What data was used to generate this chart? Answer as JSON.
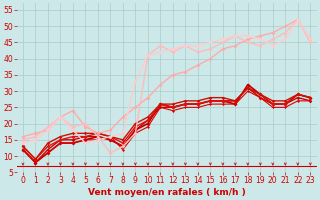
{
  "bg_color": "#cce8e8",
  "grid_color": "#aacccc",
  "xlabel": "Vent moyen/en rafales ( km/h )",
  "xlim": [
    -0.5,
    23.5
  ],
  "ylim": [
    5,
    57
  ],
  "yticks": [
    5,
    10,
    15,
    20,
    25,
    30,
    35,
    40,
    45,
    50,
    55
  ],
  "xticks": [
    0,
    1,
    2,
    3,
    4,
    5,
    6,
    7,
    8,
    9,
    10,
    11,
    12,
    13,
    14,
    15,
    16,
    17,
    18,
    19,
    20,
    21,
    22,
    23
  ],
  "series": [
    {
      "x": [
        0,
        1,
        2,
        3,
        4,
        5,
        6,
        7,
        8,
        9,
        10,
        11,
        12,
        13,
        14,
        15,
        16,
        17,
        18,
        19,
        20,
        21,
        22,
        23
      ],
      "y": [
        12,
        8,
        11,
        14,
        14,
        15,
        16,
        15,
        13,
        18,
        20,
        26,
        25,
        26,
        26,
        27,
        27,
        26,
        32,
        29,
        26,
        26,
        29,
        28
      ],
      "color": "#bb0000",
      "lw": 1.2,
      "marker": "D",
      "ms": 2.0
    },
    {
      "x": [
        0,
        1,
        2,
        3,
        4,
        5,
        6,
        7,
        8,
        9,
        10,
        11,
        12,
        13,
        14,
        15,
        16,
        17,
        18,
        19,
        20,
        21,
        22,
        23
      ],
      "y": [
        12,
        8,
        12,
        15,
        15,
        16,
        16,
        15,
        13,
        18,
        21,
        25,
        25,
        26,
        26,
        27,
        27,
        27,
        31,
        28,
        26,
        26,
        28,
        27
      ],
      "color": "#cc0000",
      "lw": 1.0,
      "marker": "D",
      "ms": 1.8
    },
    {
      "x": [
        0,
        1,
        2,
        3,
        4,
        5,
        6,
        7,
        8,
        9,
        10,
        11,
        12,
        13,
        14,
        15,
        16,
        17,
        18,
        19,
        20,
        21,
        22,
        23
      ],
      "y": [
        13,
        9,
        13,
        15,
        16,
        16,
        17,
        16,
        14,
        19,
        21,
        26,
        25,
        26,
        26,
        27,
        27,
        27,
        31,
        29,
        26,
        26,
        29,
        28
      ],
      "color": "#dd1111",
      "lw": 1.0,
      "marker": "D",
      "ms": 1.8
    },
    {
      "x": [
        0,
        1,
        2,
        3,
        4,
        5,
        6,
        7,
        8,
        9,
        10,
        11,
        12,
        13,
        14,
        15,
        16,
        17,
        18,
        19,
        20,
        21,
        22,
        23
      ],
      "y": [
        13,
        9,
        14,
        16,
        17,
        17,
        17,
        16,
        15,
        20,
        22,
        26,
        26,
        27,
        27,
        28,
        28,
        27,
        31,
        29,
        27,
        27,
        29,
        28
      ],
      "color": "#cc1100",
      "lw": 1.0,
      "marker": "D",
      "ms": 1.8
    },
    {
      "x": [
        0,
        1,
        2,
        3,
        4,
        5,
        6,
        7,
        8,
        9,
        10,
        11,
        12,
        13,
        14,
        15,
        16,
        17,
        18,
        19,
        20,
        21,
        22,
        23
      ],
      "y": [
        12,
        8,
        11,
        14,
        14,
        15,
        15,
        16,
        12,
        17,
        19,
        25,
        24,
        25,
        25,
        26,
        26,
        26,
        30,
        28,
        25,
        25,
        27,
        27
      ],
      "color": "#dd0000",
      "lw": 0.8,
      "marker": "D",
      "ms": 1.5
    },
    {
      "x": [
        0,
        1,
        2,
        3,
        4,
        5,
        6,
        7,
        8,
        9,
        10,
        11,
        12,
        13,
        14,
        15,
        16,
        17,
        18,
        19,
        20,
        21,
        22,
        23
      ],
      "y": [
        16,
        17,
        18,
        22,
        24,
        19,
        17,
        18,
        22,
        25,
        28,
        32,
        35,
        36,
        38,
        40,
        43,
        44,
        46,
        47,
        48,
        50,
        52,
        46
      ],
      "color": "#ffaaaa",
      "lw": 1.0,
      "marker": "D",
      "ms": 2.0
    },
    {
      "x": [
        0,
        1,
        2,
        3,
        4,
        5,
        6,
        7,
        8,
        9,
        10,
        11,
        12,
        13,
        14,
        15,
        16,
        17,
        18,
        19,
        20,
        21,
        22,
        23
      ],
      "y": [
        15,
        16,
        19,
        22,
        19,
        20,
        16,
        11,
        13,
        17,
        41,
        44,
        42,
        44,
        42,
        43,
        45,
        47,
        45,
        44,
        46,
        48,
        52,
        45
      ],
      "color": "#ffbbbb",
      "lw": 1.0,
      "marker": "D",
      "ms": 2.0
    },
    {
      "x": [
        0,
        1,
        2,
        3,
        4,
        5,
        6,
        7,
        8,
        9,
        10,
        11,
        12,
        13,
        14,
        15,
        16,
        17,
        18,
        19,
        20,
        21,
        22,
        23
      ],
      "y": [
        14,
        15,
        18,
        22,
        18,
        14,
        15,
        16,
        17,
        33,
        41,
        42,
        43,
        44,
        44,
        45,
        46,
        47,
        47,
        46,
        44,
        46,
        52,
        46
      ],
      "color": "#ffcccc",
      "lw": 1.0,
      "marker": "D",
      "ms": 2.0
    }
  ],
  "red_line_y": 7.5,
  "arrow_color": "#cc0000",
  "xlabel_color": "#cc0000",
  "xlabel_fontsize": 6.5,
  "tick_color": "#cc0000",
  "tick_fontsize": 5.5,
  "ylabel_fontsize": 5.5
}
